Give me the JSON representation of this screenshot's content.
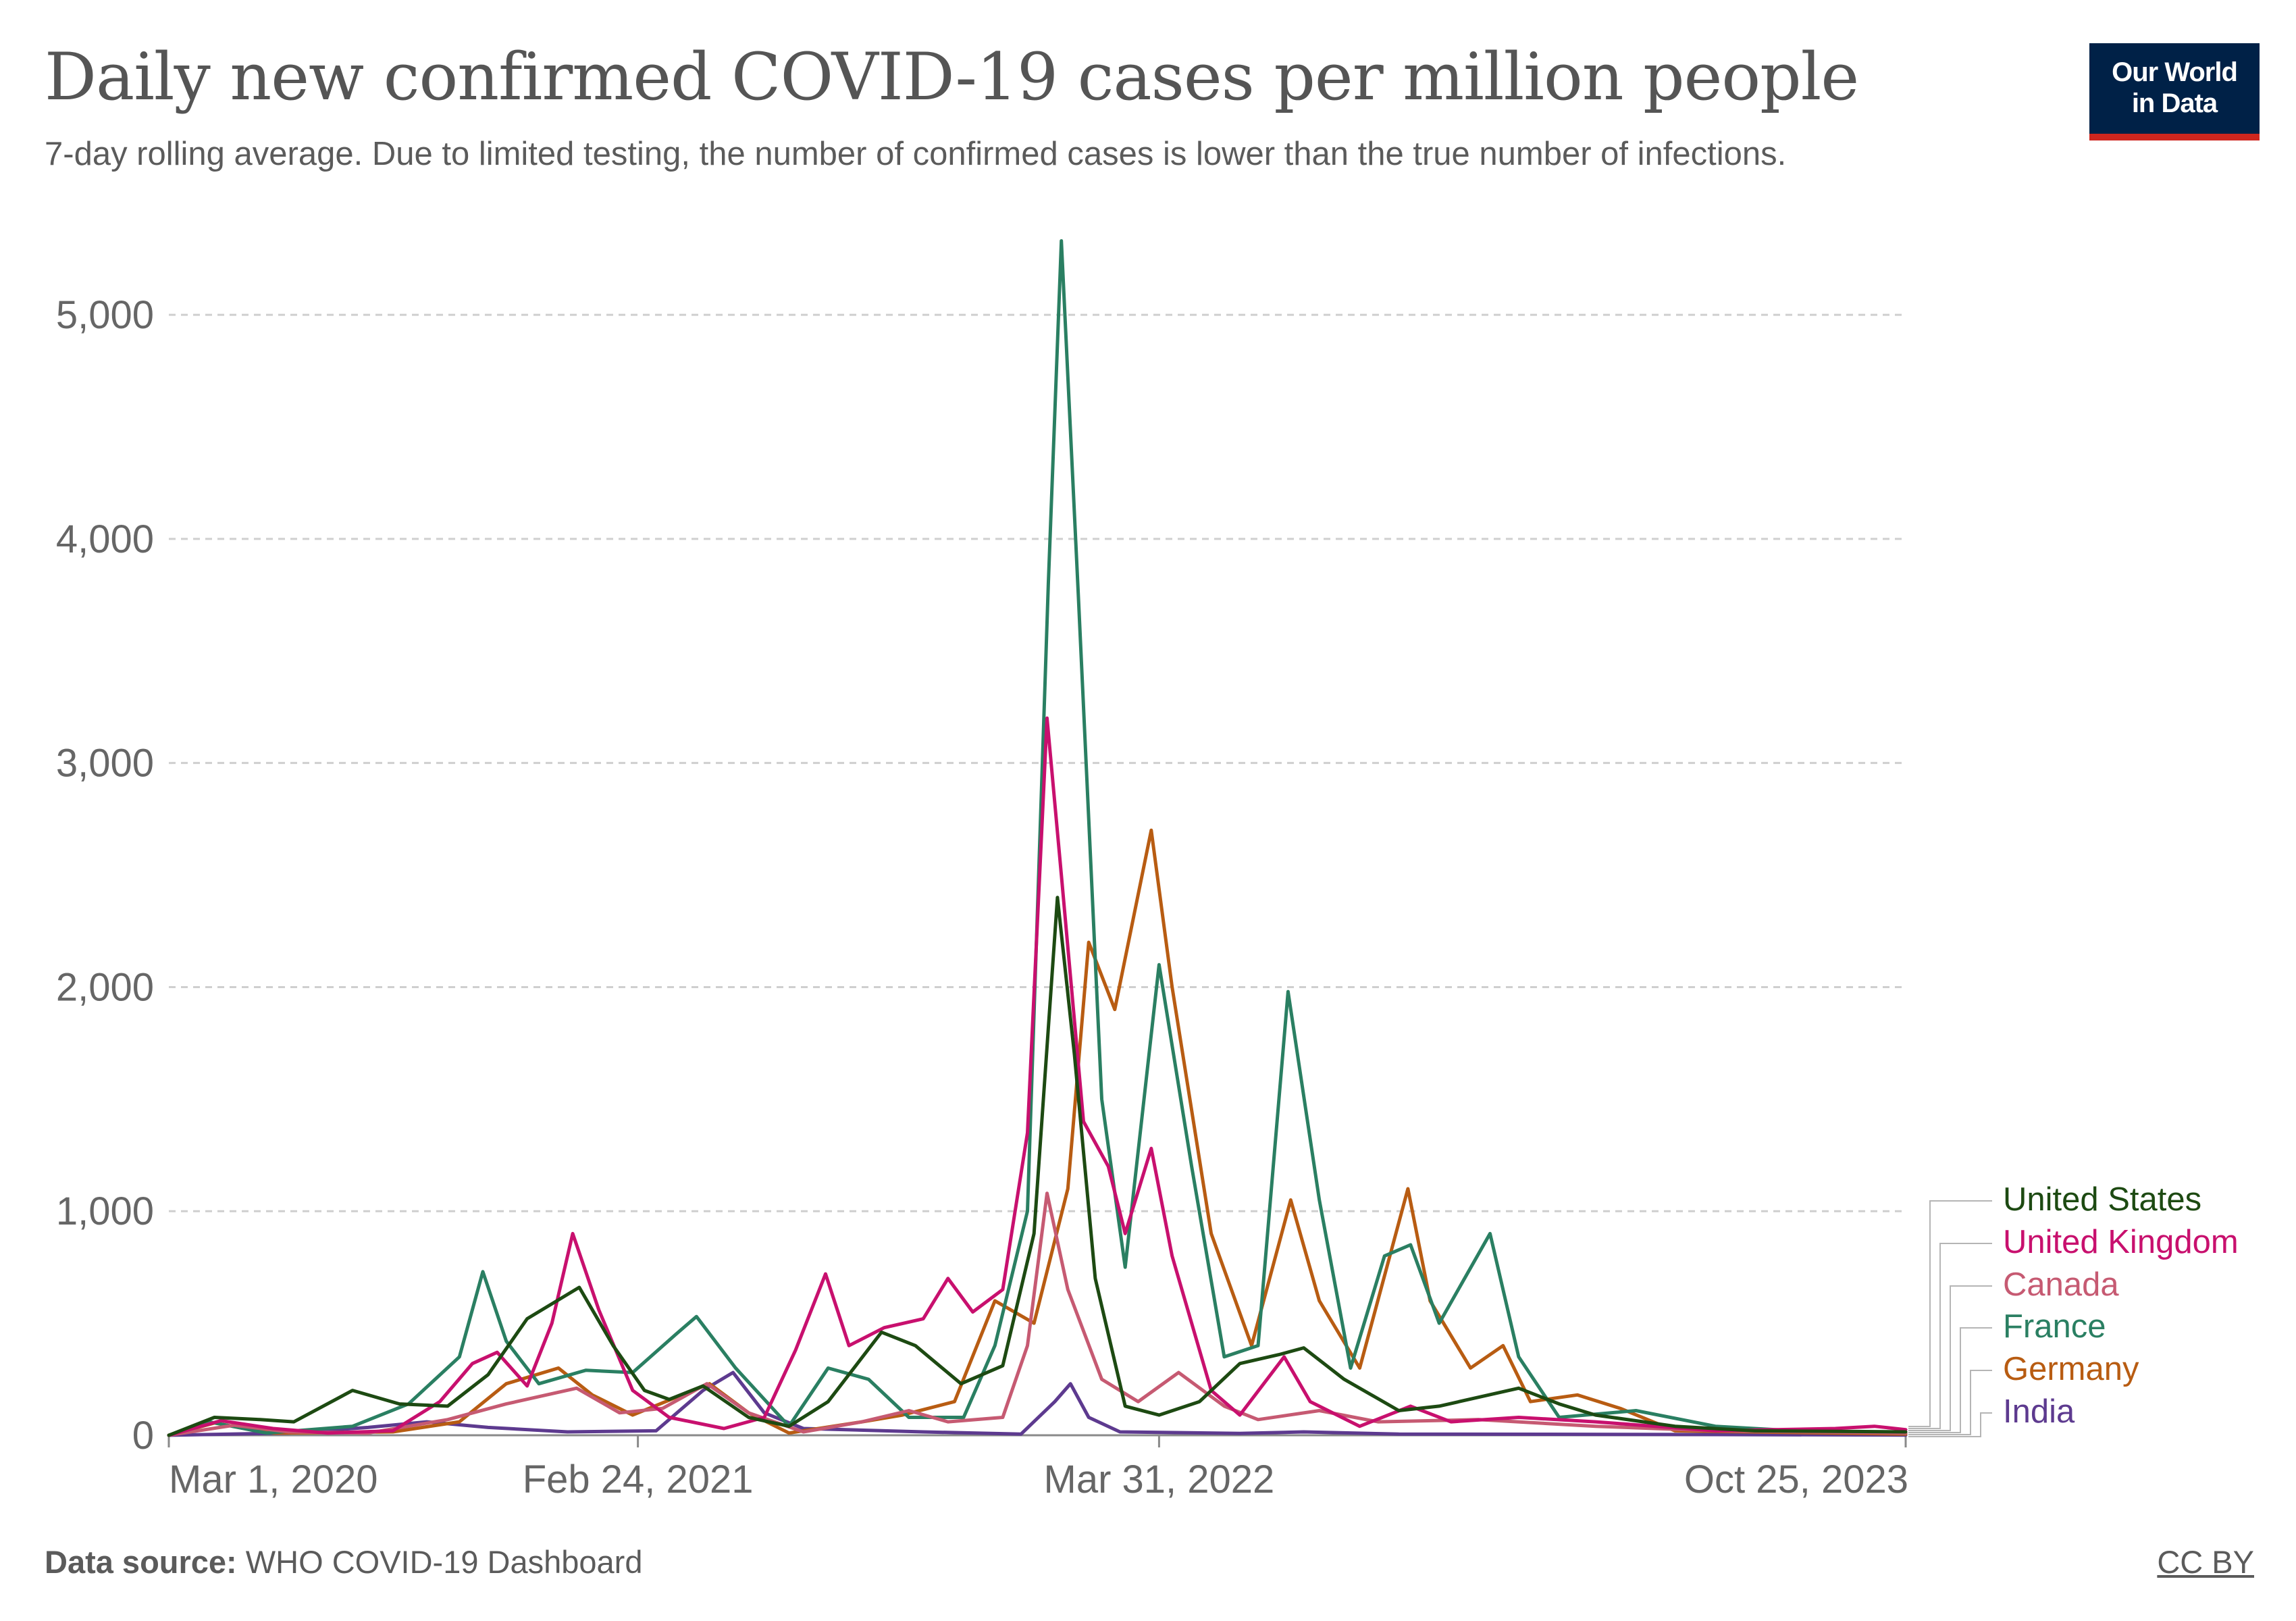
{
  "header": {
    "title": "Daily new confirmed COVID-19 cases per million people",
    "subtitle": "7-day rolling average. Due to limited testing, the number of confirmed cases is lower than the true number of infections.",
    "logo_line1": "Our World",
    "logo_line2": "in Data"
  },
  "footer": {
    "source_label": "Data source:",
    "source_text": " WHO COVID-19 Dashboard",
    "license": "CC BY"
  },
  "colors": {
    "United States": "#1d4a12",
    "United Kingdom": "#c8106e",
    "Canada": "#c65a72",
    "France": "#2a7f62",
    "Germany": "#b85c12",
    "India": "#5d3a8f"
  },
  "chart_data": {
    "type": "line",
    "title": "Daily new confirmed COVID-19 cases per million people",
    "ylim": [
      0,
      5350
    ],
    "yticks": [
      0,
      1000,
      2000,
      3000,
      4000,
      5000
    ],
    "ytick_labels": [
      "0",
      "1,000",
      "2,000",
      "3,000",
      "4,000",
      "5,000"
    ],
    "xlim": [
      "2020-03-01",
      "2023-10-25"
    ],
    "xticks": [
      "2020-03-01",
      "2021-02-24",
      "2022-03-31",
      "2023-10-25"
    ],
    "xtick_labels": [
      "Mar 1, 2020",
      "Feb 24, 2021",
      "Mar 31, 2022",
      "Oct 25, 2023"
    ],
    "grid": "horizontal dashed",
    "legend": "right, stacked",
    "series": [
      {
        "name": "United States",
        "points": [
          [
            "2020-03-01",
            0
          ],
          [
            "2020-04-05",
            80
          ],
          [
            "2020-05-10",
            70
          ],
          [
            "2020-06-05",
            60
          ],
          [
            "2020-07-20",
            200
          ],
          [
            "2020-08-25",
            140
          ],
          [
            "2020-10-01",
            130
          ],
          [
            "2020-11-01",
            270
          ],
          [
            "2020-12-01",
            520
          ],
          [
            "2021-01-10",
            660
          ],
          [
            "2021-02-05",
            400
          ],
          [
            "2021-03-01",
            200
          ],
          [
            "2021-03-20",
            160
          ],
          [
            "2021-04-15",
            220
          ],
          [
            "2021-05-20",
            80
          ],
          [
            "2021-06-20",
            40
          ],
          [
            "2021-07-20",
            150
          ],
          [
            "2021-08-30",
            460
          ],
          [
            "2021-09-25",
            400
          ],
          [
            "2021-10-30",
            230
          ],
          [
            "2021-12-01",
            310
          ],
          [
            "2021-12-25",
            900
          ],
          [
            "2022-01-12",
            2400
          ],
          [
            "2022-01-25",
            1700
          ],
          [
            "2022-02-10",
            700
          ],
          [
            "2022-03-05",
            130
          ],
          [
            "2022-03-31",
            90
          ],
          [
            "2022-05-01",
            150
          ],
          [
            "2022-06-01",
            320
          ],
          [
            "2022-07-01",
            360
          ],
          [
            "2022-07-20",
            390
          ],
          [
            "2022-08-20",
            250
          ],
          [
            "2022-10-01",
            110
          ],
          [
            "2022-11-01",
            130
          ],
          [
            "2023-01-01",
            210
          ],
          [
            "2023-02-01",
            140
          ],
          [
            "2023-03-01",
            90
          ],
          [
            "2023-05-01",
            40
          ],
          [
            "2023-07-01",
            20
          ],
          [
            "2023-10-25",
            15
          ]
        ]
      },
      {
        "name": "United Kingdom",
        "points": [
          [
            "2020-03-01",
            0
          ],
          [
            "2020-04-10",
            65
          ],
          [
            "2020-05-20",
            30
          ],
          [
            "2020-07-01",
            10
          ],
          [
            "2020-08-20",
            20
          ],
          [
            "2020-09-25",
            150
          ],
          [
            "2020-10-20",
            320
          ],
          [
            "2020-11-08",
            370
          ],
          [
            "2020-12-01",
            220
          ],
          [
            "2020-12-20",
            500
          ],
          [
            "2021-01-05",
            900
          ],
          [
            "2021-01-25",
            560
          ],
          [
            "2021-02-20",
            200
          ],
          [
            "2021-03-20",
            80
          ],
          [
            "2021-05-01",
            30
          ],
          [
            "2021-06-01",
            80
          ],
          [
            "2021-06-25",
            380
          ],
          [
            "2021-07-18",
            720
          ],
          [
            "2021-08-05",
            400
          ],
          [
            "2021-09-01",
            480
          ],
          [
            "2021-10-01",
            520
          ],
          [
            "2021-10-20",
            700
          ],
          [
            "2021-11-08",
            550
          ],
          [
            "2021-12-01",
            650
          ],
          [
            "2021-12-20",
            1350
          ],
          [
            "2022-01-04",
            3200
          ],
          [
            "2022-01-15",
            2500
          ],
          [
            "2022-02-01",
            1400
          ],
          [
            "2022-02-20",
            1200
          ],
          [
            "2022-03-05",
            900
          ],
          [
            "2022-03-25",
            1280
          ],
          [
            "2022-04-10",
            800
          ],
          [
            "2022-05-10",
            200
          ],
          [
            "2022-06-01",
            90
          ],
          [
            "2022-07-05",
            350
          ],
          [
            "2022-07-25",
            150
          ],
          [
            "2022-09-01",
            40
          ],
          [
            "2022-10-10",
            130
          ],
          [
            "2022-11-10",
            60
          ],
          [
            "2023-01-01",
            80
          ],
          [
            "2023-03-01",
            60
          ],
          [
            "2023-06-01",
            20
          ],
          [
            "2023-09-01",
            30
          ],
          [
            "2023-10-01",
            40
          ],
          [
            "2023-10-25",
            25
          ]
        ]
      },
      {
        "name": "Canada",
        "points": [
          [
            "2020-03-01",
            0
          ],
          [
            "2020-04-20",
            45
          ],
          [
            "2020-06-01",
            15
          ],
          [
            "2020-08-01",
            10
          ],
          [
            "2020-10-01",
            70
          ],
          [
            "2020-11-15",
            140
          ],
          [
            "2021-01-08",
            210
          ],
          [
            "2021-02-10",
            100
          ],
          [
            "2021-03-15",
            120
          ],
          [
            "2021-04-18",
            230
          ],
          [
            "2021-05-20",
            100
          ],
          [
            "2021-07-01",
            15
          ],
          [
            "2021-08-15",
            60
          ],
          [
            "2021-09-20",
            110
          ],
          [
            "2021-10-20",
            60
          ],
          [
            "2021-12-01",
            80
          ],
          [
            "2021-12-20",
            400
          ],
          [
            "2022-01-04",
            1080
          ],
          [
            "2022-01-20",
            650
          ],
          [
            "2022-02-15",
            250
          ],
          [
            "2022-03-15",
            150
          ],
          [
            "2022-04-15",
            280
          ],
          [
            "2022-05-20",
            130
          ],
          [
            "2022-06-15",
            70
          ],
          [
            "2022-08-01",
            110
          ],
          [
            "2022-09-15",
            60
          ],
          [
            "2022-12-01",
            70
          ],
          [
            "2023-03-01",
            40
          ],
          [
            "2023-06-01",
            20
          ],
          [
            "2023-10-25",
            10
          ]
        ]
      },
      {
        "name": "France",
        "points": [
          [
            "2020-03-01",
            0
          ],
          [
            "2020-04-01",
            60
          ],
          [
            "2020-05-15",
            10
          ],
          [
            "2020-07-20",
            40
          ],
          [
            "2020-09-01",
            140
          ],
          [
            "2020-10-10",
            350
          ],
          [
            "2020-10-28",
            730
          ],
          [
            "2020-11-15",
            420
          ],
          [
            "2020-12-10",
            230
          ],
          [
            "2021-01-15",
            290
          ],
          [
            "2021-02-20",
            280
          ],
          [
            "2021-03-25",
            450
          ],
          [
            "2021-04-10",
            530
          ],
          [
            "2021-05-10",
            300
          ],
          [
            "2021-06-20",
            40
          ],
          [
            "2021-07-20",
            300
          ],
          [
            "2021-08-20",
            250
          ],
          [
            "2021-09-20",
            80
          ],
          [
            "2021-11-01",
            80
          ],
          [
            "2021-11-25",
            400
          ],
          [
            "2021-12-20",
            1000
          ],
          [
            "2022-01-05",
            3800
          ],
          [
            "2022-01-15",
            5330
          ],
          [
            "2022-01-28",
            3750
          ],
          [
            "2022-02-15",
            1500
          ],
          [
            "2022-03-05",
            750
          ],
          [
            "2022-03-31",
            2100
          ],
          [
            "2022-04-25",
            1200
          ],
          [
            "2022-05-20",
            350
          ],
          [
            "2022-06-15",
            400
          ],
          [
            "2022-07-08",
            1980
          ],
          [
            "2022-08-01",
            1050
          ],
          [
            "2022-08-25",
            300
          ],
          [
            "2022-09-20",
            800
          ],
          [
            "2022-10-10",
            850
          ],
          [
            "2022-11-01",
            500
          ],
          [
            "2022-12-10",
            900
          ],
          [
            "2023-01-01",
            350
          ],
          [
            "2023-02-01",
            80
          ],
          [
            "2023-04-01",
            110
          ],
          [
            "2023-06-01",
            40
          ],
          [
            "2023-08-01",
            20
          ],
          [
            "2023-10-25",
            10
          ]
        ]
      },
      {
        "name": "Germany",
        "points": [
          [
            "2020-03-01",
            0
          ],
          [
            "2020-04-05",
            55
          ],
          [
            "2020-05-20",
            10
          ],
          [
            "2020-08-20",
            15
          ],
          [
            "2020-10-10",
            60
          ],
          [
            "2020-11-15",
            230
          ],
          [
            "2020-12-25",
            300
          ],
          [
            "2021-01-20",
            180
          ],
          [
            "2021-02-20",
            90
          ],
          [
            "2021-04-20",
            230
          ],
          [
            "2021-05-20",
            100
          ],
          [
            "2021-06-20",
            10
          ],
          [
            "2021-08-15",
            60
          ],
          [
            "2021-09-15",
            90
          ],
          [
            "2021-10-25",
            150
          ],
          [
            "2021-11-25",
            600
          ],
          [
            "2021-12-25",
            500
          ],
          [
            "2022-01-20",
            1100
          ],
          [
            "2022-02-05",
            2200
          ],
          [
            "2022-02-25",
            1900
          ],
          [
            "2022-03-25",
            2700
          ],
          [
            "2022-04-10",
            2000
          ],
          [
            "2022-05-10",
            900
          ],
          [
            "2022-06-10",
            400
          ],
          [
            "2022-07-10",
            1050
          ],
          [
            "2022-08-01",
            600
          ],
          [
            "2022-09-01",
            300
          ],
          [
            "2022-10-08",
            1100
          ],
          [
            "2022-10-25",
            600
          ],
          [
            "2022-11-25",
            300
          ],
          [
            "2022-12-20",
            400
          ],
          [
            "2023-01-10",
            150
          ],
          [
            "2023-02-15",
            180
          ],
          [
            "2023-03-20",
            120
          ],
          [
            "2023-05-01",
            20
          ],
          [
            "2023-10-25",
            5
          ]
        ]
      },
      {
        "name": "India",
        "points": [
          [
            "2020-03-01",
            0
          ],
          [
            "2020-06-01",
            10
          ],
          [
            "2020-08-01",
            35
          ],
          [
            "2020-09-15",
            60
          ],
          [
            "2020-11-01",
            35
          ],
          [
            "2021-01-01",
            15
          ],
          [
            "2021-03-10",
            20
          ],
          [
            "2021-04-15",
            200
          ],
          [
            "2021-05-08",
            280
          ],
          [
            "2021-06-01",
            100
          ],
          [
            "2021-07-01",
            30
          ],
          [
            "2021-10-01",
            15
          ],
          [
            "2021-12-15",
            5
          ],
          [
            "2022-01-10",
            150
          ],
          [
            "2022-01-22",
            230
          ],
          [
            "2022-02-05",
            80
          ],
          [
            "2022-03-01",
            15
          ],
          [
            "2022-06-01",
            8
          ],
          [
            "2022-07-20",
            15
          ],
          [
            "2022-10-01",
            5
          ],
          [
            "2023-04-01",
            4
          ],
          [
            "2023-10-25",
            1
          ]
        ]
      }
    ]
  }
}
